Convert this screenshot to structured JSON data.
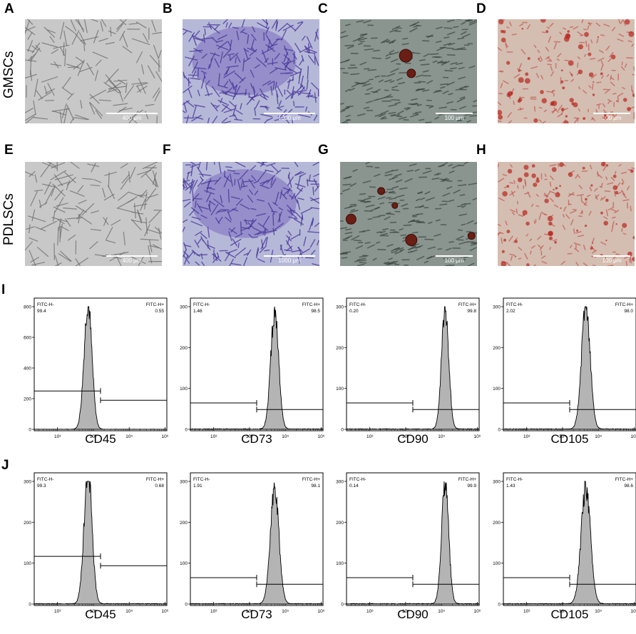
{
  "panel_labels": {
    "A": "A",
    "B": "B",
    "C": "C",
    "D": "D",
    "E": "E",
    "F": "F",
    "G": "G",
    "H": "H",
    "I": "I",
    "J": "J"
  },
  "row_labels": {
    "gmsc": "GMSCs",
    "pdlsc": "PDLSCs"
  },
  "micrographs": [
    {
      "id": "A",
      "scale": "400 μm",
      "style": "brightfield"
    },
    {
      "id": "B",
      "scale": "1000 μm",
      "style": "crystal-violet"
    },
    {
      "id": "C",
      "scale": "100 μm",
      "style": "oil-red"
    },
    {
      "id": "D",
      "scale": "100 μm",
      "style": "alizarin"
    },
    {
      "id": "E",
      "scale": "400 μm",
      "style": "brightfield"
    },
    {
      "id": "F",
      "scale": "1000 μm",
      "style": "crystal-violet"
    },
    {
      "id": "G",
      "scale": "100 μm",
      "style": "oil-red"
    },
    {
      "id": "H",
      "scale": "100 μm",
      "style": "alizarin"
    }
  ],
  "chart_data": [
    {
      "type": "area",
      "panel": "I",
      "marker": "CD45",
      "ymax": 800,
      "yticks": [
        0,
        200,
        400,
        600,
        800
      ],
      "x_ticks": [
        "10³",
        "10⁴",
        "10⁵",
        "10⁶"
      ],
      "gate_neg_label": "FITC-H-",
      "gate_pos_label": "FITC-H+",
      "neg_pct": "99.4",
      "pos_pct": "0.55",
      "peak_log": 3.85,
      "width_log": 0.11,
      "peak_count": 820
    },
    {
      "type": "area",
      "panel": "I",
      "marker": "CD73",
      "ymax": 300,
      "yticks": [
        0,
        100,
        200,
        300
      ],
      "x_ticks": [
        "10³",
        "10⁴",
        "10⁵",
        "10⁶"
      ],
      "gate_neg_label": "FITC-H-",
      "gate_pos_label": "FITC-H+",
      "neg_pct": "1.46",
      "pos_pct": "98.5",
      "peak_log": 4.7,
      "width_log": 0.11,
      "peak_count": 285
    },
    {
      "type": "area",
      "panel": "I",
      "marker": "CD90",
      "ymax": 300,
      "yticks": [
        0,
        100,
        200,
        300
      ],
      "x_ticks": [
        "10³",
        "10⁴",
        "10⁵",
        "10⁶"
      ],
      "gate_neg_label": "FITC-H-",
      "gate_pos_label": "FITC-H+",
      "neg_pct": "0.20",
      "pos_pct": "99.8",
      "peak_log": 5.1,
      "width_log": 0.1,
      "peak_count": 290
    },
    {
      "type": "area",
      "panel": "I",
      "marker": "CD105",
      "ymax": 300,
      "yticks": [
        0,
        100,
        200,
        300
      ],
      "x_ticks": [
        "10³",
        "10⁴",
        "10⁵",
        "10⁶"
      ],
      "gate_neg_label": "FITC-H-",
      "gate_pos_label": "FITC-H+",
      "neg_pct": "2.02",
      "pos_pct": "98.0",
      "peak_log": 4.65,
      "width_log": 0.12,
      "peak_count": 300
    },
    {
      "type": "area",
      "panel": "J",
      "marker": "CD45",
      "ymax": 300,
      "yticks": [
        0,
        100,
        200,
        300
      ],
      "x_ticks": [
        "10³",
        "10⁴",
        "10⁵",
        "10⁶"
      ],
      "gate_neg_label": "FITC-H-",
      "gate_pos_label": "FITC-H+",
      "neg_pct": "99.3",
      "pos_pct": "0.68",
      "peak_log": 3.85,
      "width_log": 0.11,
      "peak_count": 330
    },
    {
      "type": "area",
      "panel": "J",
      "marker": "CD73",
      "ymax": 300,
      "yticks": [
        0,
        100,
        200,
        300
      ],
      "x_ticks": [
        "10³",
        "10⁴",
        "10⁵",
        "10⁶"
      ],
      "gate_neg_label": "FITC-H-",
      "gate_pos_label": "FITC-H+",
      "neg_pct": "1.91",
      "pos_pct": "98.1",
      "peak_log": 4.7,
      "width_log": 0.12,
      "peak_count": 280
    },
    {
      "type": "area",
      "panel": "J",
      "marker": "CD90",
      "ymax": 300,
      "yticks": [
        0,
        100,
        200,
        300
      ],
      "x_ticks": [
        "10³",
        "10⁴",
        "10⁵",
        "10⁶"
      ],
      "gate_neg_label": "FITC-H-",
      "gate_pos_label": "FITC-H+",
      "neg_pct": "0.14",
      "pos_pct": "99.9",
      "peak_log": 5.1,
      "width_log": 0.1,
      "peak_count": 290
    },
    {
      "type": "area",
      "panel": "J",
      "marker": "CD105",
      "ymax": 300,
      "yticks": [
        0,
        100,
        200,
        300
      ],
      "x_ticks": [
        "10³",
        "10⁴",
        "10⁵",
        "10⁶"
      ],
      "gate_neg_label": "FITC-H-",
      "gate_pos_label": "FITC-H+",
      "neg_pct": "1.43",
      "pos_pct": "98.6",
      "peak_log": 4.65,
      "width_log": 0.13,
      "peak_count": 285
    }
  ]
}
